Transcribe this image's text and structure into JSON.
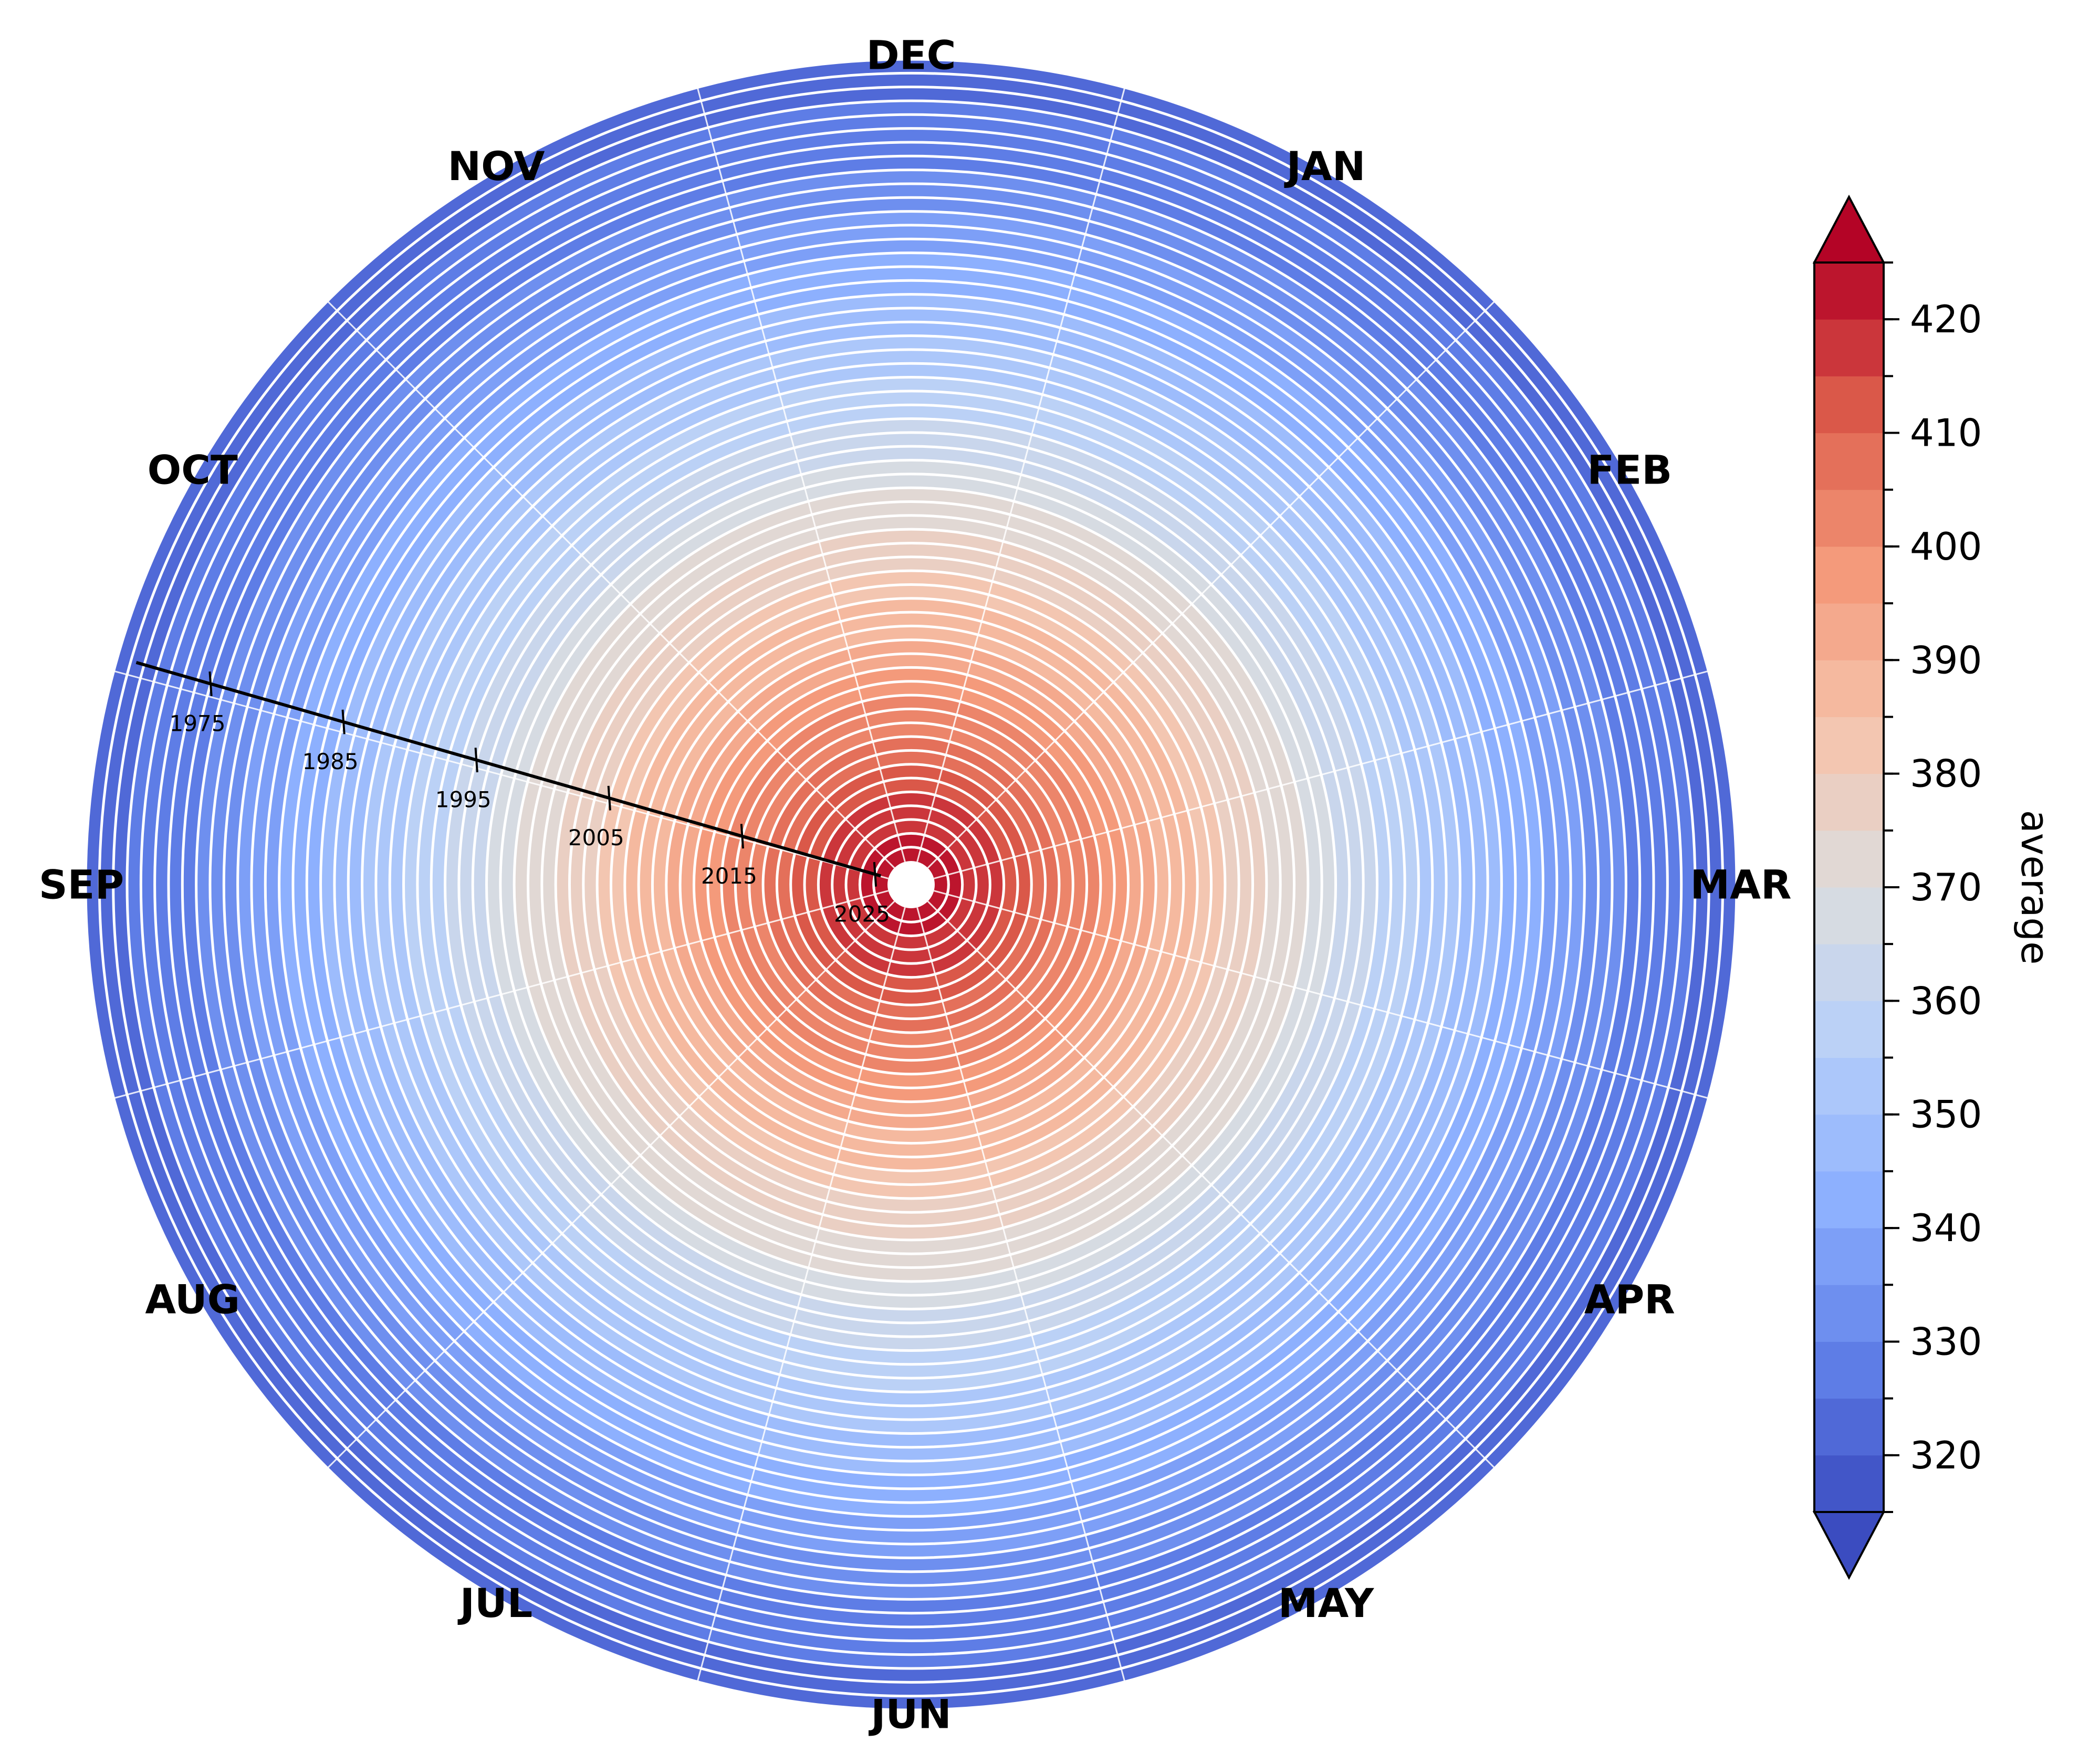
{
  "chart_data": {
    "type": "heatmap",
    "subtype": "polar-spiral",
    "title": "",
    "months": [
      "DEC",
      "JAN",
      "FEB",
      "MAR",
      "APR",
      "MAY",
      "JUN",
      "JUL",
      "AUG",
      "SEP",
      "OCT",
      "NOV"
    ],
    "year_range": [
      1968,
      2026
    ],
    "year_ticks": [
      "1975",
      "1985",
      "1995",
      "2005",
      "2015",
      "2025"
    ],
    "values": {
      "description_of_fill": "radial CO2 average; outer ring = earliest year, inner ring = latest year",
      "outer_value": 322,
      "inner_value": 425
    },
    "colorbar": {
      "label": "average",
      "colormap": "coolwarm",
      "levels_min": 315,
      "levels_max": 425,
      "level_step": 5,
      "tick_labels": [
        "320",
        "330",
        "340",
        "350",
        "360",
        "370",
        "380",
        "390",
        "400",
        "410",
        "420"
      ],
      "extend": "both"
    },
    "grid": true
  }
}
